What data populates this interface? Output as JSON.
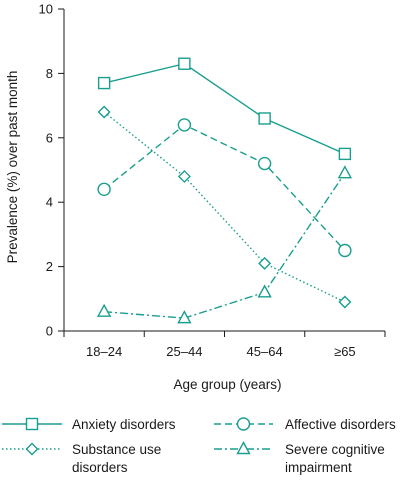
{
  "chart_data": {
    "type": "line",
    "categories": [
      "18–24",
      "25–44",
      "45–64",
      "≥65"
    ],
    "xlabel": "Age group (years)",
    "ylabel": "Prevalence (%) over past month",
    "ylim": [
      0,
      10
    ],
    "yticks": [
      "0",
      "2",
      "4",
      "6",
      "8",
      "10"
    ],
    "grid": false,
    "legend_position": "bottom",
    "color": "#1a9e8e",
    "series": [
      {
        "name": "Anxiety disorders",
        "values": [
          7.7,
          8.3,
          6.6,
          5.5
        ],
        "marker": "square",
        "dash": "solid"
      },
      {
        "name": "Affective disorders",
        "values": [
          4.4,
          6.4,
          5.2,
          2.5
        ],
        "marker": "circle",
        "dash": "dashed"
      },
      {
        "name": "Substance use disorders",
        "values": [
          6.8,
          4.8,
          2.1,
          0.9
        ],
        "marker": "diamond",
        "dash": "dotted"
      },
      {
        "name": "Severe cognitive impairment",
        "values": [
          0.6,
          0.4,
          1.2,
          4.9
        ],
        "marker": "triangle",
        "dash": "dashdot"
      }
    ],
    "legend": [
      {
        "lines": [
          "Anxiety disorders"
        ]
      },
      {
        "lines": [
          "Affective disorders"
        ]
      },
      {
        "lines": [
          "Substance use",
          "disorders"
        ]
      },
      {
        "lines": [
          "Severe cognitive",
          "impairment"
        ]
      }
    ]
  }
}
